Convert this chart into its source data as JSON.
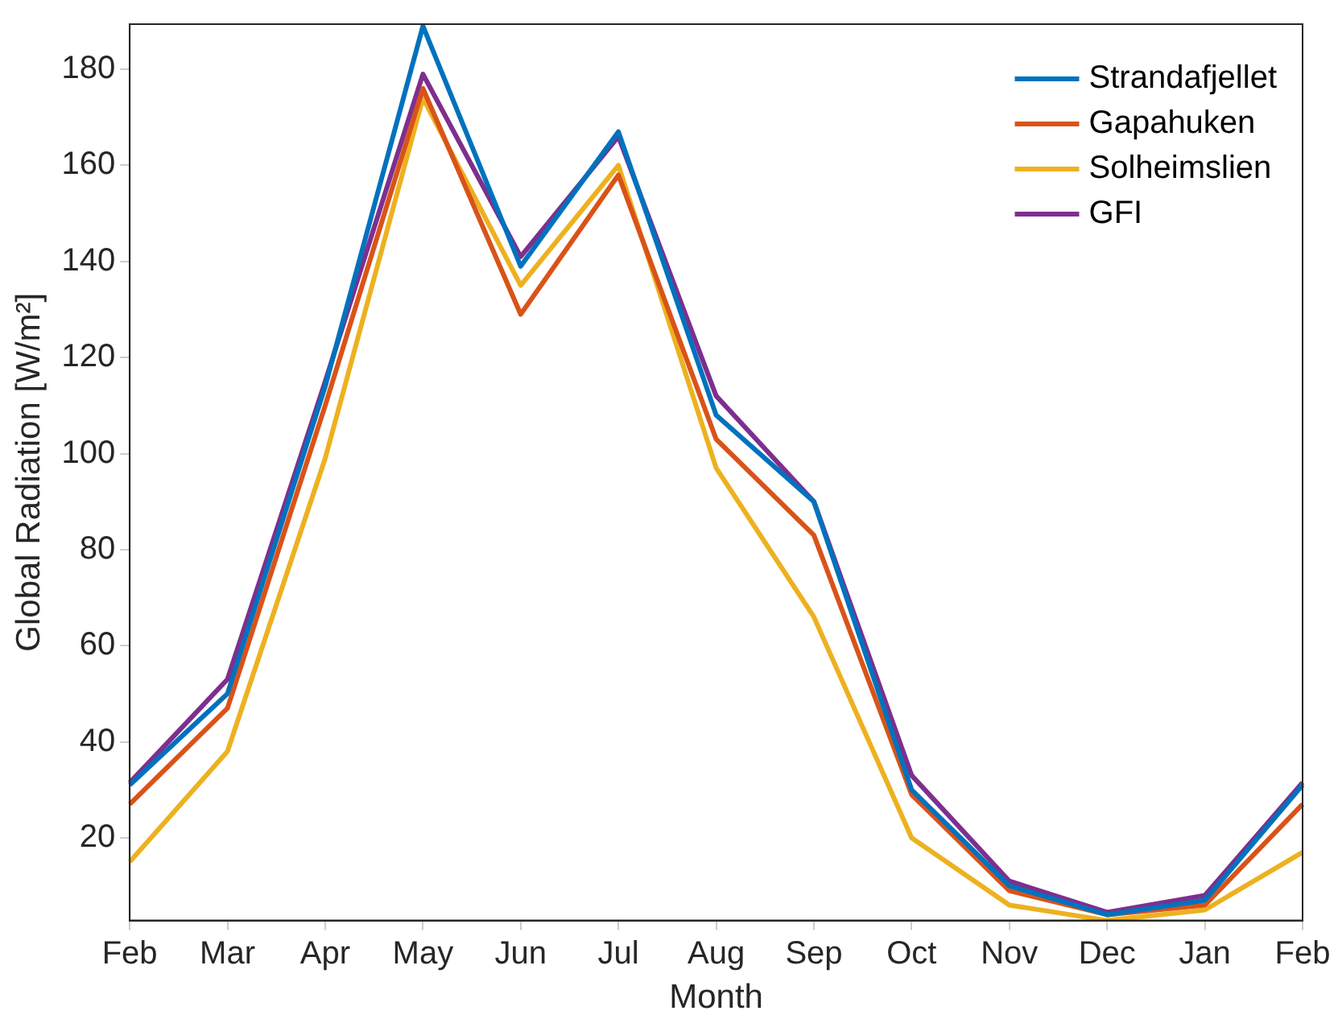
{
  "chart_data": {
    "type": "line",
    "xlabel": "Month",
    "ylabel": "Global Radiation [W/m²]",
    "categories": [
      "Feb",
      "Mar",
      "Apr",
      "May",
      "Jun",
      "Jul",
      "Aug",
      "Sep",
      "Oct",
      "Nov",
      "Dec",
      "Jan",
      "Feb"
    ],
    "series": [
      {
        "name": "Strandafjellet",
        "color": "#0072bd",
        "values": [
          31,
          50,
          114,
          189,
          139,
          167,
          108,
          90,
          30,
          10,
          4,
          7,
          31
        ]
      },
      {
        "name": "Gapahuken",
        "color": "#d95319",
        "values": [
          27,
          47,
          110,
          176,
          129,
          158,
          103,
          83,
          29,
          9,
          4,
          6,
          27
        ]
      },
      {
        "name": "Solheimslien",
        "color": "#edb120",
        "values": [
          15,
          38,
          99,
          174,
          135,
          160,
          97,
          66,
          20,
          6,
          2.8,
          5,
          17
        ]
      },
      {
        "name": "GFI",
        "color": "#7e2f8e",
        "values": [
          31.5,
          53,
          115,
          179,
          141,
          166,
          112,
          90,
          33,
          11,
          4.5,
          8,
          31.5
        ]
      }
    ],
    "ylim": [
      2.8,
      189.4
    ],
    "yticks": [
      20,
      40,
      60,
      80,
      100,
      120,
      140,
      160,
      180
    ],
    "grid": false,
    "legend": "top right",
    "marker": "none",
    "line_style": "solid"
  }
}
